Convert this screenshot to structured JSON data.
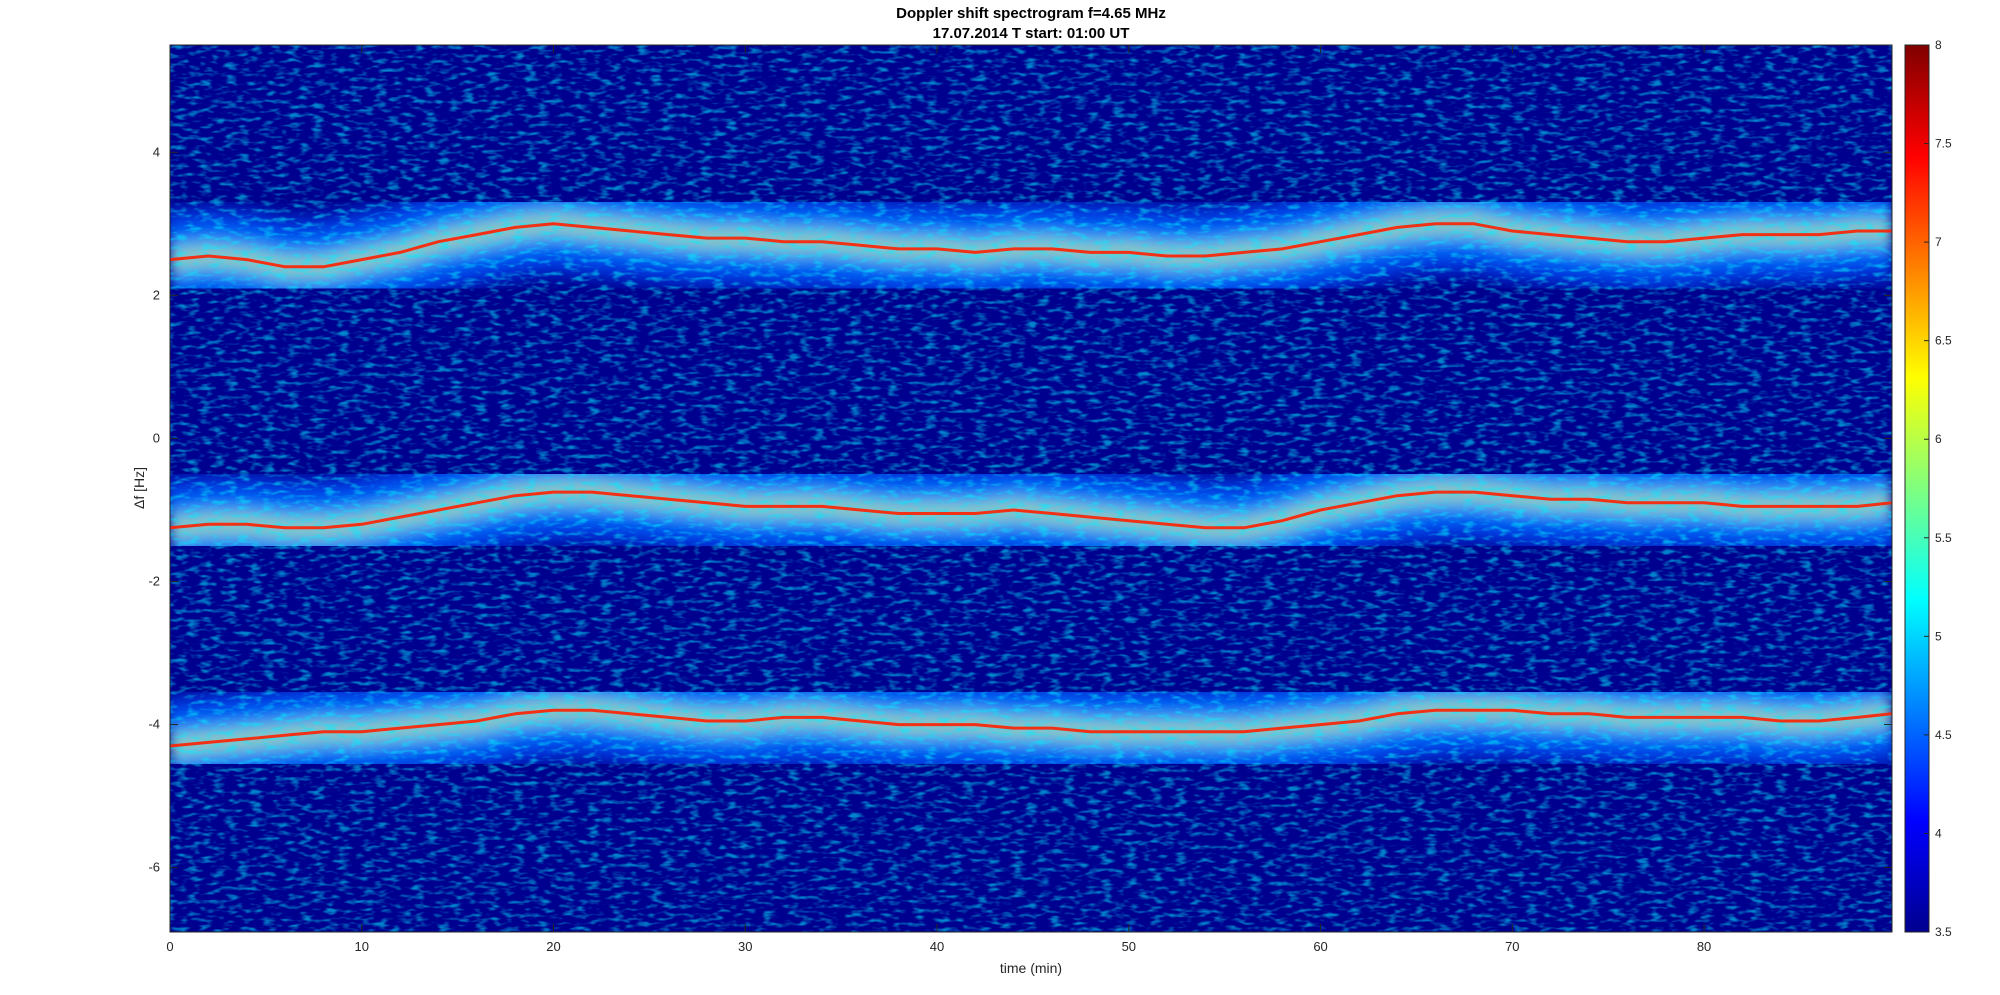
{
  "chart_data": {
    "type": "heatmap",
    "title": "Doppler shift spectrogram f=4.65 MHz",
    "subtitle": "17.07.2014   T start: 01:00 UT",
    "xlabel": "time (min)",
    "ylabel": "Δf [Hz]",
    "xlim": [
      0,
      89.8
    ],
    "ylim": [
      -6.9,
      5.5
    ],
    "x_ticks": [
      0,
      10,
      20,
      30,
      40,
      50,
      60,
      70,
      80
    ],
    "y_ticks": [
      -6,
      -4,
      -2,
      0,
      2,
      4
    ],
    "colorbar": {
      "colormap": "jet",
      "range": [
        3.5,
        8
      ],
      "ticks": [
        3.5,
        4,
        4.5,
        5,
        5.5,
        6,
        6.5,
        7,
        7.5,
        8
      ]
    },
    "background_level": 3.5,
    "grid": false,
    "series": [
      {
        "x": [
          0,
          2,
          4,
          6,
          8,
          10,
          12,
          14,
          16,
          18,
          20,
          22,
          24,
          26,
          28,
          30,
          32,
          34,
          36,
          38,
          40,
          42,
          44,
          46,
          48,
          50,
          52,
          54,
          56,
          58,
          60,
          62,
          64,
          66,
          68,
          70,
          72,
          74,
          76,
          78,
          80,
          82,
          84,
          86,
          88,
          89.8
        ],
        "y": [
          2.5,
          2.55,
          2.5,
          2.4,
          2.4,
          2.5,
          2.6,
          2.75,
          2.85,
          2.95,
          3.0,
          2.95,
          2.9,
          2.85,
          2.8,
          2.8,
          2.75,
          2.75,
          2.7,
          2.65,
          2.65,
          2.6,
          2.65,
          2.65,
          2.6,
          2.6,
          2.55,
          2.55,
          2.6,
          2.65,
          2.75,
          2.85,
          2.95,
          3.0,
          3.0,
          2.9,
          2.85,
          2.8,
          2.75,
          2.75,
          2.8,
          2.85,
          2.85,
          2.85,
          2.9,
          2.9
        ]
      },
      {
        "x": [
          0,
          2,
          4,
          6,
          8,
          10,
          12,
          14,
          16,
          18,
          20,
          22,
          24,
          26,
          28,
          30,
          32,
          34,
          36,
          38,
          40,
          42,
          44,
          46,
          48,
          50,
          52,
          54,
          56,
          58,
          60,
          62,
          64,
          66,
          68,
          70,
          72,
          74,
          76,
          78,
          80,
          82,
          84,
          86,
          88,
          89.8
        ],
        "y": [
          -1.25,
          -1.2,
          -1.2,
          -1.25,
          -1.25,
          -1.2,
          -1.1,
          -1.0,
          -0.9,
          -0.8,
          -0.75,
          -0.75,
          -0.8,
          -0.85,
          -0.9,
          -0.95,
          -0.95,
          -0.95,
          -1.0,
          -1.05,
          -1.05,
          -1.05,
          -1.0,
          -1.05,
          -1.1,
          -1.15,
          -1.2,
          -1.25,
          -1.25,
          -1.15,
          -1.0,
          -0.9,
          -0.8,
          -0.75,
          -0.75,
          -0.8,
          -0.85,
          -0.85,
          -0.9,
          -0.9,
          -0.9,
          -0.95,
          -0.95,
          -0.95,
          -0.95,
          -0.9
        ]
      },
      {
        "x": [
          0,
          2,
          4,
          6,
          8,
          10,
          12,
          14,
          16,
          18,
          20,
          22,
          24,
          26,
          28,
          30,
          32,
          34,
          36,
          38,
          40,
          42,
          44,
          46,
          48,
          50,
          52,
          54,
          56,
          58,
          60,
          62,
          64,
          66,
          68,
          70,
          72,
          74,
          76,
          78,
          80,
          82,
          84,
          86,
          88,
          89.8
        ],
        "y": [
          -4.3,
          -4.25,
          -4.2,
          -4.15,
          -4.1,
          -4.1,
          -4.05,
          -4.0,
          -3.95,
          -3.85,
          -3.8,
          -3.8,
          -3.85,
          -3.9,
          -3.95,
          -3.95,
          -3.9,
          -3.9,
          -3.95,
          -4.0,
          -4.0,
          -4.0,
          -4.05,
          -4.05,
          -4.1,
          -4.1,
          -4.1,
          -4.1,
          -4.1,
          -4.05,
          -4.0,
          -3.95,
          -3.85,
          -3.8,
          -3.8,
          -3.8,
          -3.85,
          -3.85,
          -3.9,
          -3.9,
          -3.9,
          -3.9,
          -3.95,
          -3.95,
          -3.9,
          -3.85
        ]
      }
    ]
  }
}
